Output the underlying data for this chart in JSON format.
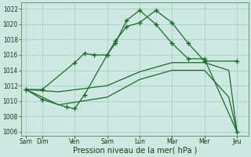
{
  "bg_color": "#cce8e0",
  "grid_color": "#a8d0c4",
  "line_color": "#1a6b2a",
  "xlabel": "Pression niveau de la mer( hPa )",
  "xtick_labels": [
    "Sam",
    "Dim",
    "Ven",
    "Sam",
    "Lun",
    "Mar",
    "Mer",
    "Jeu"
  ],
  "xtick_positions": [
    0,
    1,
    3,
    5,
    7,
    9,
    11,
    13
  ],
  "ylim": [
    1005.5,
    1022.8
  ],
  "yticks": [
    1006,
    1008,
    1010,
    1012,
    1014,
    1016,
    1018,
    1020,
    1022
  ],
  "line1_x": [
    0,
    1,
    3,
    3.6,
    4.2,
    5,
    5.5,
    6.2,
    7,
    8,
    9,
    10,
    11,
    13
  ],
  "line1_y": [
    1011.5,
    1011.5,
    1015.0,
    1016.2,
    1016.0,
    1016.0,
    1017.8,
    1019.7,
    1020.2,
    1021.8,
    1020.2,
    1017.5,
    1015.2,
    1015.2
  ],
  "line2_x": [
    0,
    1,
    2.5,
    3,
    3.6,
    5,
    5.5,
    6.2,
    7,
    8,
    9,
    10,
    11,
    13
  ],
  "line2_y": [
    1011.5,
    1010.2,
    1009.2,
    1009.0,
    1010.8,
    1016.0,
    1017.5,
    1020.5,
    1021.8,
    1020.0,
    1017.5,
    1015.5,
    1015.5,
    1006.0
  ],
  "line3_x": [
    0,
    2,
    5,
    7,
    9,
    11,
    12.5,
    13
  ],
  "line3_y": [
    1011.5,
    1011.2,
    1012.0,
    1013.8,
    1015.0,
    1015.0,
    1014.0,
    1006.0
  ],
  "line4_x": [
    0,
    2,
    5,
    7,
    9,
    11,
    12.5,
    13
  ],
  "line4_y": [
    1011.5,
    1009.5,
    1010.5,
    1012.8,
    1014.0,
    1014.0,
    1010.5,
    1006.0
  ]
}
